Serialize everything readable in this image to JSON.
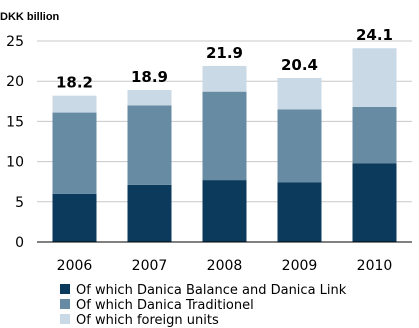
{
  "chart_data": {
    "type": "bar",
    "stacked": true,
    "unit_label": "DKK billion",
    "title": "",
    "xlabel": "",
    "ylabel": "",
    "categories": [
      "2006",
      "2007",
      "2008",
      "2009",
      "2010"
    ],
    "ylim": [
      0,
      25
    ],
    "yticks": [
      0,
      5,
      10,
      15,
      20,
      25
    ],
    "grid": true,
    "legend_position": "bottom",
    "series": [
      {
        "name": "Of which Danica Balance and Danica Link",
        "color": "#0b3a5c",
        "values": [
          6.0,
          7.1,
          7.7,
          7.4,
          9.8
        ]
      },
      {
        "name": "Of which Danica Traditionel",
        "color": "#678ba3",
        "values": [
          10.1,
          9.9,
          11.0,
          9.1,
          7.0
        ]
      },
      {
        "name": "Of which foreign units",
        "color": "#c9d9e6",
        "values": [
          2.1,
          1.9,
          3.2,
          3.9,
          7.3
        ]
      }
    ],
    "totals": [
      "18.2",
      "18.9",
      "21.9",
      "20.4",
      "24.1"
    ]
  }
}
